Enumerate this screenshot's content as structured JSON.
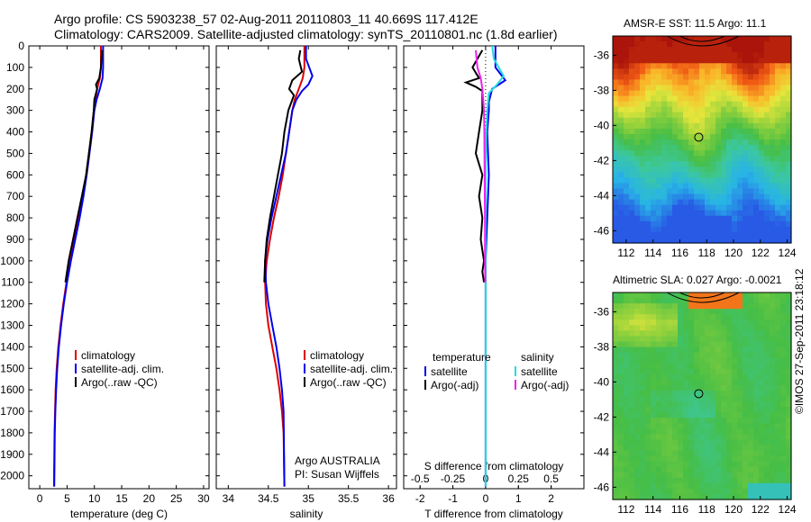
{
  "title_line1": "Argo profile: CS 5903238_57 02-Aug-2011 20110803_11 40.669S 117.412E",
  "title_line2": "Climatology: CARS2009. Satellite-adjusted climatology: synTS_20110801.nc (1.8d earlier)",
  "timestamp": "©IMOS 27-Sep-2011 23:18:12",
  "chart_data": [
    {
      "id": "temperature",
      "type": "line",
      "xlabel": "temperature (deg C)",
      "ylabel": "",
      "xlim": [
        -2,
        31
      ],
      "ylim": [
        0,
        2060
      ],
      "xticks": [
        0,
        5,
        10,
        15,
        20,
        25,
        30
      ],
      "yticks": [
        0,
        100,
        200,
        300,
        400,
        500,
        600,
        700,
        800,
        900,
        1000,
        1100,
        1200,
        1300,
        1400,
        1500,
        1600,
        1700,
        1800,
        1900,
        2000
      ],
      "y_reversed": true,
      "legend": [
        "climatology",
        "satellite-adj. clim.",
        "Argo(..raw -QC)"
      ],
      "legend_colors": [
        "#dd0000",
        "#0000ee",
        "#000000"
      ],
      "series": [
        {
          "name": "climatology",
          "color": "#dd0000",
          "x": [
            11.2,
            11.2,
            11.0,
            10.5,
            10.2,
            9.9,
            9.5,
            9.0,
            8.5,
            7.9,
            7.2,
            6.4,
            5.6,
            4.9,
            4.3,
            3.8,
            3.4,
            3.1,
            2.9,
            2.8,
            2.7,
            2.6
          ],
          "y": [
            0,
            100,
            150,
            200,
            250,
            300,
            400,
            500,
            600,
            700,
            800,
            900,
            1000,
            1100,
            1200,
            1300,
            1400,
            1500,
            1600,
            1700,
            1800,
            2050
          ]
        },
        {
          "name": "satellite-adj. clim.",
          "color": "#0000ee",
          "x": [
            11.6,
            11.6,
            11.5,
            11.0,
            10.4,
            10.0,
            9.6,
            9.1,
            8.6,
            8.0,
            7.3,
            6.5,
            5.7,
            5.0,
            4.4,
            3.9,
            3.5,
            3.2,
            3.0,
            2.85,
            2.75,
            2.65
          ],
          "y": [
            0,
            100,
            150,
            200,
            250,
            300,
            400,
            500,
            600,
            700,
            800,
            900,
            1000,
            1100,
            1200,
            1300,
            1400,
            1500,
            1600,
            1700,
            1800,
            2050
          ]
        },
        {
          "name": "Argo(..raw -QC)",
          "color": "#000000",
          "x": [
            11.4,
            11.3,
            11.2,
            10.9,
            10.3,
            10.5,
            10.0,
            9.9,
            9.5,
            9.0,
            8.5,
            7.7,
            6.9,
            6.1,
            5.3,
            4.7
          ],
          "y": [
            20,
            60,
            100,
            150,
            180,
            200,
            250,
            300,
            400,
            500,
            600,
            700,
            800,
            900,
            1000,
            1100
          ]
        }
      ]
    },
    {
      "id": "salinity",
      "type": "line",
      "xlabel": "salinity",
      "ylabel": "",
      "xlim": [
        33.85,
        36.1
      ],
      "ylim": [
        0,
        2060
      ],
      "xticks": [
        34,
        34.5,
        35,
        35.5,
        36
      ],
      "y_reversed": true,
      "legend": [
        "climatology",
        "satellite-adj. clim.",
        "Argo(..raw -QC)"
      ],
      "legend_colors": [
        "#dd0000",
        "#0000ee",
        "#000000"
      ],
      "annotation": [
        "Argo AUSTRALIA",
        "PI: Susan Wijffels"
      ],
      "series": [
        {
          "name": "climatology",
          "color": "#dd0000",
          "x": [
            34.95,
            34.95,
            34.93,
            34.88,
            34.83,
            34.8,
            34.76,
            34.72,
            34.68,
            34.63,
            34.57,
            34.52,
            34.48,
            34.46,
            34.47,
            34.5,
            34.55,
            34.6,
            34.64,
            34.67,
            34.69,
            34.7
          ],
          "y": [
            0,
            100,
            150,
            200,
            250,
            300,
            400,
            500,
            600,
            700,
            800,
            900,
            1000,
            1100,
            1200,
            1300,
            1400,
            1500,
            1600,
            1700,
            1800,
            2050
          ]
        },
        {
          "name": "satellite-adj. clim.",
          "color": "#0000ee",
          "x": [
            34.97,
            34.97,
            35.05,
            35.0,
            34.92,
            34.85,
            34.8,
            34.76,
            34.72,
            34.66,
            34.6,
            34.54,
            34.49,
            34.46,
            34.47,
            34.5,
            34.55,
            34.6,
            34.64,
            34.67,
            34.69,
            34.7
          ],
          "y": [
            0,
            60,
            140,
            180,
            210,
            250,
            300,
            400,
            500,
            600,
            700,
            800,
            900,
            1000,
            1100,
            1200,
            1300,
            1400,
            1500,
            1600,
            1700,
            2050
          ]
        },
        {
          "name": "Argo(..raw -QC)",
          "color": "#000000",
          "x": [
            34.9,
            34.88,
            34.92,
            34.8,
            34.76,
            34.82,
            34.75,
            34.7,
            34.67,
            34.62,
            34.57,
            34.52,
            34.48,
            34.46,
            34.45
          ],
          "y": [
            20,
            60,
            120,
            160,
            200,
            230,
            300,
            400,
            500,
            600,
            700,
            800,
            900,
            1000,
            1100
          ]
        }
      ]
    },
    {
      "id": "difference",
      "type": "line",
      "xlabel": "T difference from climatology",
      "xlabel2": "S difference from climatology",
      "xlim": [
        -2.5,
        3
      ],
      "ylim": [
        0,
        2060
      ],
      "xticks": [
        -2,
        -1,
        0,
        1,
        2
      ],
      "x2ticks": [
        -0.5,
        -0.25,
        0,
        0.25,
        0.5
      ],
      "x2tick_labels": [
        "-0.5",
        "-0.25",
        "0",
        "0.25",
        "0.5"
      ],
      "y_reversed": true,
      "legend_groups": [
        {
          "title": "temperature",
          "items": [
            "satellite",
            "Argo(-adj)"
          ],
          "colors": [
            "#0000ee",
            "#000000"
          ]
        },
        {
          "title": "salinity",
          "items": [
            "satellite",
            "Argo(-adj)"
          ],
          "colors": [
            "#22dddd",
            "#ee22ee"
          ]
        }
      ],
      "series": [
        {
          "name": "T satellite",
          "color": "#0000ee",
          "x": [
            0.3,
            0.3,
            0.6,
            0.2,
            0.1,
            0.1,
            0.05,
            0.1,
            0.05,
            0.0,
            0.0,
            0.0,
            0.0,
            0.0
          ],
          "y": [
            0,
            100,
            160,
            200,
            260,
            300,
            400,
            600,
            800,
            1000,
            1200,
            1500,
            1800,
            2050
          ]
        },
        {
          "name": "T Argo(-adj)",
          "color": "#000000",
          "x": [
            -0.1,
            -0.4,
            -0.2,
            -0.6,
            -0.3,
            -0.1,
            -0.1,
            -0.2,
            -0.3,
            -0.1,
            -0.2,
            -0.1,
            -0.15,
            -0.05,
            -0.1,
            -0.05
          ],
          "y": [
            20,
            100,
            150,
            170,
            190,
            210,
            300,
            400,
            500,
            600,
            700,
            800,
            900,
            1000,
            1050,
            1100
          ]
        },
        {
          "name": "S satellite",
          "color": "#22dddd",
          "x": [
            0.2,
            0.25,
            0.55,
            0.35,
            0.1,
            0.05,
            0.02,
            0.0,
            0.0,
            0.0,
            0.0,
            0.0
          ],
          "y": [
            0,
            60,
            140,
            180,
            220,
            300,
            400,
            600,
            1000,
            1400,
            1800,
            2050
          ]
        },
        {
          "name": "S Argo(-adj)",
          "color": "#ee22ee",
          "x": [
            -0.3,
            -0.25,
            -0.15,
            -0.1,
            -0.05,
            -0.04,
            -0.03,
            -0.02,
            -0.02,
            -0.01
          ],
          "y": [
            20,
            100,
            150,
            200,
            300,
            400,
            600,
            800,
            1000,
            1100
          ]
        }
      ]
    }
  ],
  "maps": [
    {
      "id": "sst",
      "title": "AMSR-E SST: 11.5 Argo: 11.1",
      "lon_ticks": [
        "112",
        "114",
        "116",
        "118",
        "120",
        "122",
        "124"
      ],
      "lat_ticks": [
        "-36",
        "-38",
        "-40",
        "-42",
        "-44",
        "-46"
      ],
      "lon_range": [
        111,
        124.3
      ],
      "lat_range": [
        -46.7,
        -34.9
      ],
      "float_position": {
        "lon": 117.41,
        "lat": -40.67
      }
    },
    {
      "id": "sla",
      "title": "Altimetric SLA: 0.027 Argo: -0.0021",
      "lon_ticks": [
        "112",
        "114",
        "116",
        "118",
        "120",
        "122",
        "124"
      ],
      "lat_ticks": [
        "-36",
        "-38",
        "-40",
        "-42",
        "-44",
        "-46"
      ],
      "lon_range": [
        111,
        124.3
      ],
      "lat_range": [
        -46.7,
        -34.9
      ],
      "float_position": {
        "lon": 117.41,
        "lat": -40.67
      }
    }
  ]
}
